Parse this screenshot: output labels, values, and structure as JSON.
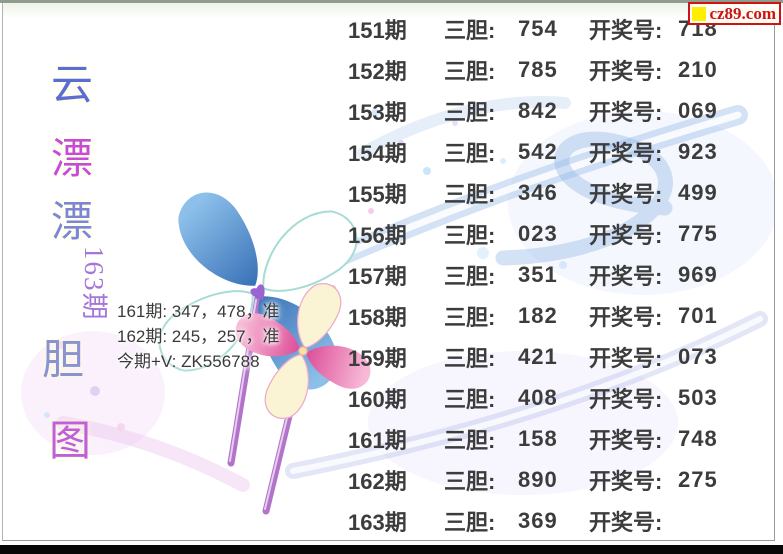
{
  "window": {
    "top_bar_color": "#8d9c8d",
    "bottom_bar_color": "#070707",
    "background": "#ffffff"
  },
  "watermark": {
    "text": "cz89.com",
    "text_color": "#cd1414",
    "border_color": "#cd1414",
    "square_color": "#ffee00"
  },
  "left_panel": {
    "title_chars": [
      {
        "char": "云",
        "color": "#5c6cd2"
      },
      {
        "char": "漂",
        "color": "#c84ad8"
      },
      {
        "char": "漂",
        "color": "#7c86d6"
      },
      {
        "char": "胆",
        "color": "#8a93cf"
      },
      {
        "char": "图",
        "color": "#c060d8"
      }
    ],
    "issue_vertical": {
      "text": "163期",
      "color": "#a575d8"
    }
  },
  "annotation": {
    "color": "#3a3a3a",
    "lines": [
      "161期: 347，478，准",
      "162期: 245，257，准",
      "今期+V: ZK556788"
    ]
  },
  "results": {
    "text_color": "#3c3c3c",
    "dan_label": "三胆:",
    "draw_label": "开奖号:",
    "rows": [
      {
        "issue": "151期",
        "dan": "754",
        "draw": "718"
      },
      {
        "issue": "152期",
        "dan": "785",
        "draw": "210"
      },
      {
        "issue": "153期",
        "dan": "842",
        "draw": "069"
      },
      {
        "issue": "154期",
        "dan": "542",
        "draw": "923"
      },
      {
        "issue": "155期",
        "dan": "346",
        "draw": "499"
      },
      {
        "issue": "156期",
        "dan": "023",
        "draw": "775"
      },
      {
        "issue": "157期",
        "dan": "351",
        "draw": "969"
      },
      {
        "issue": "158期",
        "dan": "182",
        "draw": "701"
      },
      {
        "issue": "159期",
        "dan": "421",
        "draw": "073"
      },
      {
        "issue": "160期",
        "dan": "408",
        "draw": "503"
      },
      {
        "issue": "161期",
        "dan": "158",
        "draw": "748"
      },
      {
        "issue": "162期",
        "dan": "890",
        "draw": "275"
      },
      {
        "issue": "163期",
        "dan": "369",
        "draw": ""
      }
    ]
  }
}
